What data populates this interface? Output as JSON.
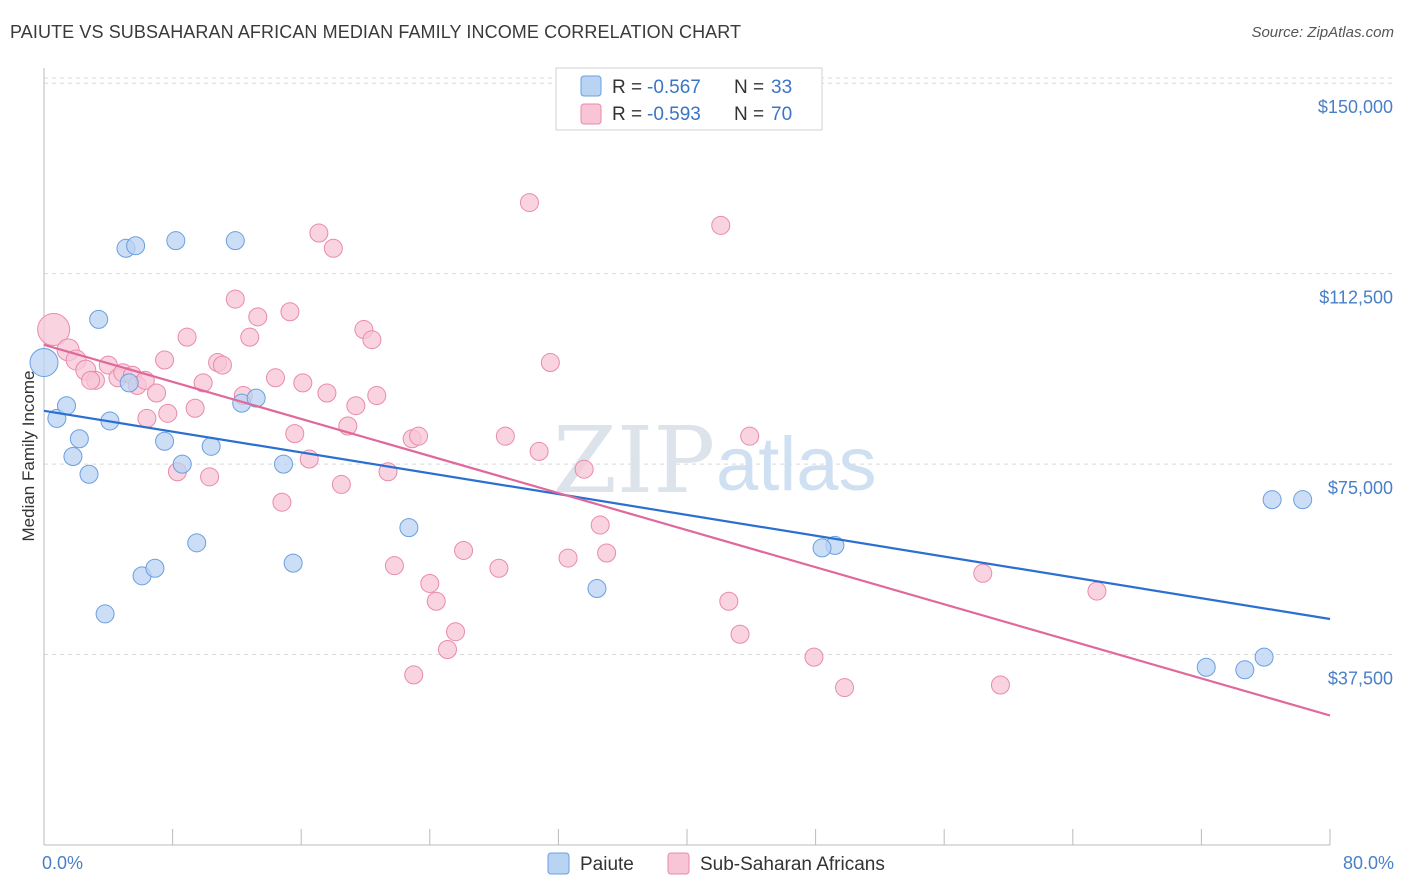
{
  "title": "PAIUTE VS SUBSAHARAN AFRICAN MEDIAN FAMILY INCOME CORRELATION CHART",
  "source": "Source: ZipAtlas.com",
  "colors": {
    "paiute": "#6a9fe0",
    "paiute_fill": "#b9d3f3",
    "paiute_line": "#2b6fd0",
    "africans": "#e98aab",
    "africans_fill": "#f7c5d6",
    "africans_line": "#e0689a",
    "grid": "#d9d9d9",
    "axis": "#bbbbbb"
  },
  "chart_data": {
    "type": "scatter",
    "xlabel": "",
    "ylabel": "Median Family Income",
    "xlim": [
      0,
      80
    ],
    "ylim": [
      0,
      153000
    ],
    "x_tick_labels": {
      "left": "0.0%",
      "right": "80.0%"
    },
    "y_ticks": [
      {
        "value": 37500,
        "label": "$37,500"
      },
      {
        "value": 75000,
        "label": "$75,000"
      },
      {
        "value": 112500,
        "label": "$112,500"
      },
      {
        "value": 150000,
        "label": "$150,000"
      }
    ],
    "legend": [
      {
        "r_label": "R = ",
        "r_value": "-0.567",
        "n_label": "N = ",
        "n_value": "33"
      },
      {
        "r_label": "R = ",
        "r_value": "-0.593",
        "n_label": "N = ",
        "n_value": "70"
      }
    ],
    "series": [
      {
        "name": "Paiute",
        "trend": {
          "x": [
            0,
            80
          ],
          "y": [
            85500,
            44500
          ]
        },
        "points": [
          [
            0.0,
            95000,
            14
          ],
          [
            0.8,
            84000,
            9
          ],
          [
            1.4,
            86500,
            9
          ],
          [
            1.8,
            76500,
            9
          ],
          [
            2.2,
            80000,
            9
          ],
          [
            2.8,
            73000,
            9
          ],
          [
            3.4,
            103500,
            9
          ],
          [
            4.1,
            83500,
            9
          ],
          [
            3.8,
            45500,
            9
          ],
          [
            5.1,
            117500,
            9
          ],
          [
            5.7,
            118000,
            9
          ],
          [
            5.3,
            91000,
            9
          ],
          [
            6.1,
            53000,
            9
          ],
          [
            6.9,
            54500,
            9
          ],
          [
            7.5,
            79500,
            9
          ],
          [
            8.2,
            119000,
            9
          ],
          [
            8.6,
            75000,
            9
          ],
          [
            9.5,
            59500,
            9
          ],
          [
            10.4,
            78500,
            9
          ],
          [
            11.9,
            119000,
            9
          ],
          [
            12.3,
            87000,
            9
          ],
          [
            13.2,
            88000,
            9
          ],
          [
            14.9,
            75000,
            9
          ],
          [
            15.5,
            55500,
            9
          ],
          [
            22.7,
            62500,
            9
          ],
          [
            34.4,
            50500,
            9
          ],
          [
            49.2,
            59000,
            9
          ],
          [
            48.4,
            58500,
            9
          ],
          [
            76.4,
            68000,
            9
          ],
          [
            78.3,
            68000,
            9
          ],
          [
            72.3,
            35000,
            9
          ],
          [
            74.7,
            34500,
            9
          ],
          [
            75.9,
            37000,
            9
          ]
        ]
      },
      {
        "name": "Sub-Saharan Africans",
        "trend": {
          "x": [
            0,
            80
          ],
          "y": [
            98500,
            25500
          ]
        },
        "points": [
          [
            0.6,
            101500,
            16
          ],
          [
            1.5,
            97500,
            11
          ],
          [
            2.0,
            95500,
            10
          ],
          [
            2.6,
            93500,
            10
          ],
          [
            3.2,
            91500,
            9
          ],
          [
            2.9,
            91500,
            9
          ],
          [
            4.0,
            94500,
            9
          ],
          [
            4.6,
            92000,
            9
          ],
          [
            4.9,
            93000,
            9
          ],
          [
            5.5,
            92500,
            9
          ],
          [
            5.8,
            90500,
            9
          ],
          [
            6.3,
            91500,
            9
          ],
          [
            6.4,
            84000,
            9
          ],
          [
            7.0,
            89000,
            9
          ],
          [
            7.5,
            95500,
            9
          ],
          [
            7.7,
            85000,
            9
          ],
          [
            8.3,
            73500,
            9
          ],
          [
            8.9,
            100000,
            9
          ],
          [
            9.4,
            86000,
            9
          ],
          [
            9.9,
            91000,
            9
          ],
          [
            10.3,
            72500,
            9
          ],
          [
            10.8,
            95000,
            9
          ],
          [
            11.1,
            94500,
            9
          ],
          [
            11.9,
            107500,
            9
          ],
          [
            12.4,
            88500,
            9
          ],
          [
            12.8,
            100000,
            9
          ],
          [
            13.3,
            104000,
            9
          ],
          [
            14.4,
            92000,
            9
          ],
          [
            14.8,
            67500,
            9
          ],
          [
            15.3,
            105000,
            9
          ],
          [
            15.6,
            81000,
            9
          ],
          [
            16.1,
            91000,
            9
          ],
          [
            16.5,
            76000,
            9
          ],
          [
            17.1,
            120500,
            9
          ],
          [
            17.6,
            89000,
            9
          ],
          [
            18.0,
            117500,
            9
          ],
          [
            18.5,
            71000,
            9
          ],
          [
            18.9,
            82500,
            9
          ],
          [
            19.4,
            86500,
            9
          ],
          [
            19.9,
            101500,
            9
          ],
          [
            20.4,
            99500,
            9
          ],
          [
            20.7,
            88500,
            9
          ],
          [
            21.4,
            73500,
            9
          ],
          [
            21.8,
            55000,
            9
          ],
          [
            22.9,
            80000,
            9
          ],
          [
            23.3,
            80500,
            9
          ],
          [
            24.0,
            51500,
            9
          ],
          [
            24.4,
            48000,
            9
          ],
          [
            25.1,
            38500,
            9
          ],
          [
            25.6,
            42000,
            9
          ],
          [
            26.1,
            58000,
            9
          ],
          [
            28.3,
            54500,
            9
          ],
          [
            28.7,
            80500,
            9
          ],
          [
            30.2,
            126500,
            9
          ],
          [
            30.8,
            77500,
            9
          ],
          [
            31.5,
            95000,
            9
          ],
          [
            32.6,
            56500,
            9
          ],
          [
            33.6,
            74000,
            9
          ],
          [
            34.6,
            63000,
            9
          ],
          [
            35.0,
            57500,
            9
          ],
          [
            23.0,
            33500,
            9
          ],
          [
            42.1,
            122000,
            9
          ],
          [
            42.6,
            48000,
            9
          ],
          [
            43.3,
            41500,
            9
          ],
          [
            43.9,
            80500,
            9
          ],
          [
            47.9,
            37000,
            9
          ],
          [
            49.8,
            31000,
            9
          ],
          [
            58.4,
            53500,
            9
          ],
          [
            59.5,
            31500,
            9
          ],
          [
            65.5,
            50000,
            9
          ]
        ]
      }
    ]
  }
}
